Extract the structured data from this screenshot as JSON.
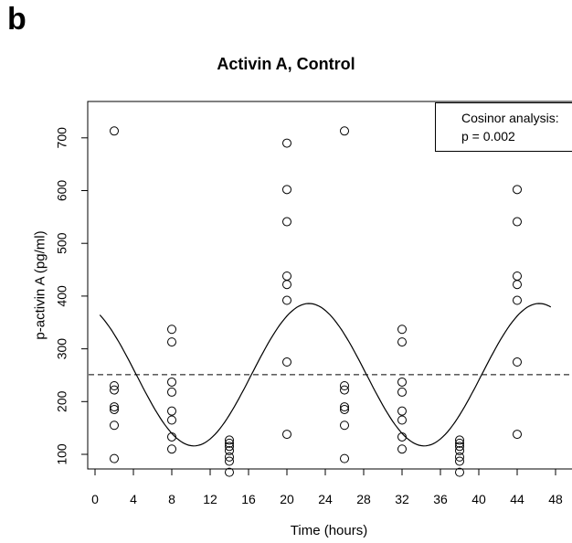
{
  "panel_label": "b",
  "chart_data": {
    "type": "scatter",
    "title": "Activin A, Control",
    "xlabel": "Time (hours)",
    "ylabel": "p-activin A (pg/ml)",
    "xlim": [
      -1,
      49
    ],
    "ylim": [
      40,
      745
    ],
    "xticks": [
      0,
      4,
      8,
      12,
      16,
      20,
      24,
      28,
      32,
      36,
      40,
      44,
      48
    ],
    "yticks": [
      100,
      200,
      300,
      400,
      500,
      600,
      700
    ],
    "points": [
      {
        "x": 2,
        "y": 713
      },
      {
        "x": 2,
        "y": 230
      },
      {
        "x": 2,
        "y": 222
      },
      {
        "x": 2,
        "y": 190
      },
      {
        "x": 2,
        "y": 185
      },
      {
        "x": 2,
        "y": 155
      },
      {
        "x": 2,
        "y": 92
      },
      {
        "x": 8,
        "y": 337
      },
      {
        "x": 8,
        "y": 313
      },
      {
        "x": 8,
        "y": 237
      },
      {
        "x": 8,
        "y": 218
      },
      {
        "x": 8,
        "y": 182
      },
      {
        "x": 8,
        "y": 165
      },
      {
        "x": 8,
        "y": 133
      },
      {
        "x": 8,
        "y": 110
      },
      {
        "x": 14,
        "y": 127
      },
      {
        "x": 14,
        "y": 121
      },
      {
        "x": 14,
        "y": 115
      },
      {
        "x": 14,
        "y": 107
      },
      {
        "x": 14,
        "y": 95
      },
      {
        "x": 14,
        "y": 87
      },
      {
        "x": 14,
        "y": 66
      },
      {
        "x": 20,
        "y": 690
      },
      {
        "x": 20,
        "y": 602
      },
      {
        "x": 20,
        "y": 541
      },
      {
        "x": 20,
        "y": 438
      },
      {
        "x": 20,
        "y": 422
      },
      {
        "x": 20,
        "y": 392
      },
      {
        "x": 20,
        "y": 275
      },
      {
        "x": 20,
        "y": 138
      },
      {
        "x": 26,
        "y": 713
      },
      {
        "x": 26,
        "y": 230
      },
      {
        "x": 26,
        "y": 222
      },
      {
        "x": 26,
        "y": 190
      },
      {
        "x": 26,
        "y": 185
      },
      {
        "x": 26,
        "y": 155
      },
      {
        "x": 26,
        "y": 92
      },
      {
        "x": 32,
        "y": 337
      },
      {
        "x": 32,
        "y": 313
      },
      {
        "x": 32,
        "y": 237
      },
      {
        "x": 32,
        "y": 218
      },
      {
        "x": 32,
        "y": 182
      },
      {
        "x": 32,
        "y": 165
      },
      {
        "x": 32,
        "y": 133
      },
      {
        "x": 32,
        "y": 110
      },
      {
        "x": 38,
        "y": 127
      },
      {
        "x": 38,
        "y": 121
      },
      {
        "x": 38,
        "y": 115
      },
      {
        "x": 38,
        "y": 107
      },
      {
        "x": 38,
        "y": 95
      },
      {
        "x": 38,
        "y": 87
      },
      {
        "x": 38,
        "y": 66
      },
      {
        "x": 44,
        "y": 602
      },
      {
        "x": 44,
        "y": 541
      },
      {
        "x": 44,
        "y": 438
      },
      {
        "x": 44,
        "y": 422
      },
      {
        "x": 44,
        "y": 392
      },
      {
        "x": 44,
        "y": 275
      },
      {
        "x": 44,
        "y": 138
      }
    ],
    "cosinor_fit": {
      "mesor": 251,
      "amplitude": 135,
      "period_hours": 24,
      "peak_hour": 22.3,
      "x_range": [
        0.5,
        47.5
      ]
    },
    "mesor_line": 251,
    "legend": {
      "position": "top-right",
      "lines": [
        "Cosinor analysis:",
        "p = 0.002"
      ]
    },
    "grid": false
  }
}
